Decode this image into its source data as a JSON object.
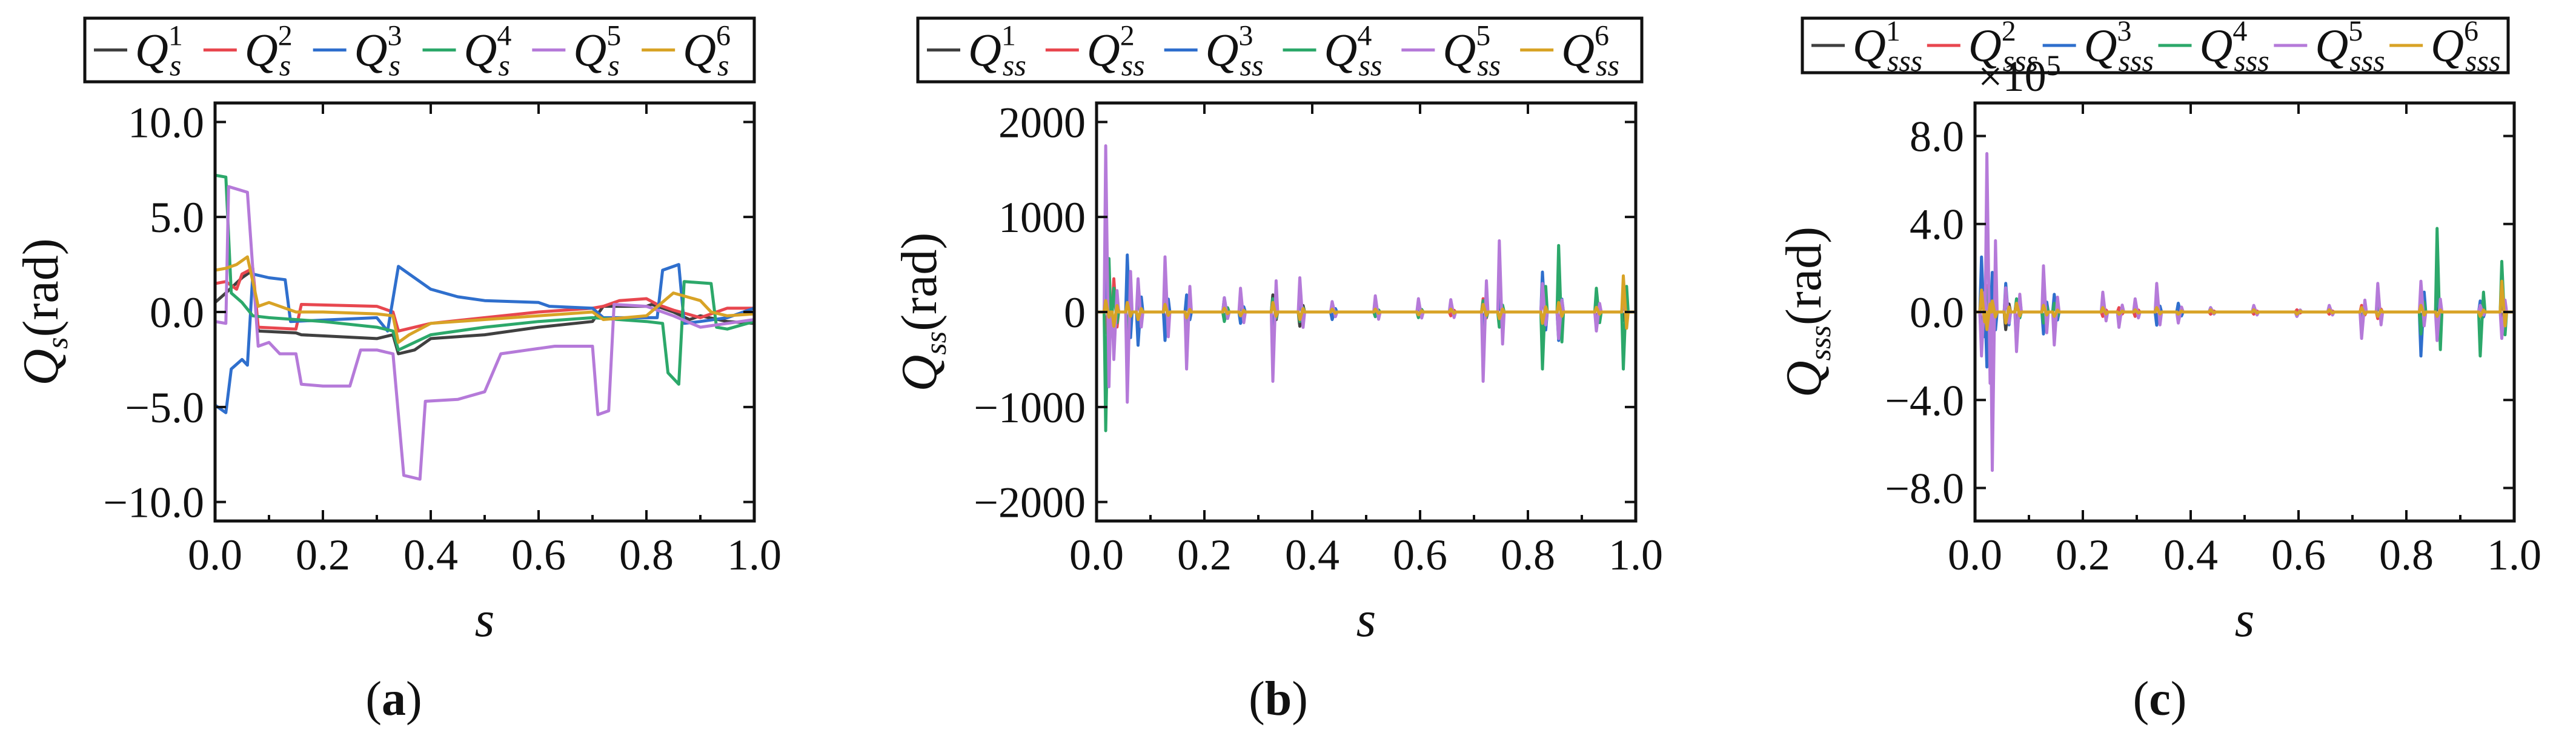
{
  "colors": {
    "series": [
      "#404040",
      "#e8474f",
      "#2f6fcd",
      "#2ca86a",
      "#b57ad9",
      "#d8a326"
    ]
  },
  "chart_data": [
    {
      "panel": "(a)",
      "panel_letter": "a",
      "type": "line",
      "title": "",
      "legend_location": "top-center",
      "legend_base": "Q",
      "legend_sub": "s",
      "legend_sups": [
        "1",
        "2",
        "3",
        "4",
        "5",
        "6"
      ],
      "xlabel": "s",
      "ylabel_main": "Q",
      "ylabel_sub": "s",
      "ylabel_unit": "(rad)",
      "xlim": [
        0,
        1
      ],
      "ylim": [
        -11,
        11
      ],
      "xticks": [
        "0.0",
        "0.2",
        "0.4",
        "0.6",
        "0.8",
        "1.0"
      ],
      "xtick_values": [
        0,
        0.2,
        0.4,
        0.6,
        0.8,
        1.0
      ],
      "yticks": [
        "10.0",
        "5.0",
        "0.0",
        "−5.0",
        "−10.0"
      ],
      "ytick_values": [
        10,
        5,
        0,
        -5,
        -10
      ],
      "exponent_label": "",
      "series": [
        {
          "name": "Q_s^1",
          "points": [
            [
              0,
              0.5
            ],
            [
              0.02,
              1.0
            ],
            [
              0.05,
              1.8
            ],
            [
              0.07,
              2.2
            ],
            [
              0.08,
              -1.0
            ],
            [
              0.15,
              -1.1
            ],
            [
              0.16,
              -1.2
            ],
            [
              0.3,
              -1.4
            ],
            [
              0.33,
              -1.2
            ],
            [
              0.34,
              -2.2
            ],
            [
              0.37,
              -2.0
            ],
            [
              0.38,
              -1.8
            ],
            [
              0.4,
              -1.4
            ],
            [
              0.5,
              -1.2
            ],
            [
              0.6,
              -0.8
            ],
            [
              0.7,
              -0.5
            ],
            [
              0.72,
              0.3
            ],
            [
              0.8,
              0.3
            ],
            [
              0.81,
              0.4
            ],
            [
              0.85,
              0.0
            ],
            [
              0.88,
              -0.4
            ],
            [
              0.9,
              -0.2
            ],
            [
              0.95,
              -0.5
            ],
            [
              1.0,
              -0.6
            ]
          ]
        },
        {
          "name": "Q_s^2",
          "points": [
            [
              0,
              1.5
            ],
            [
              0.02,
              1.6
            ],
            [
              0.04,
              1.2
            ],
            [
              0.05,
              2.0
            ],
            [
              0.07,
              2.3
            ],
            [
              0.08,
              -0.8
            ],
            [
              0.15,
              -0.9
            ],
            [
              0.16,
              0.4
            ],
            [
              0.3,
              0.3
            ],
            [
              0.33,
              0.0
            ],
            [
              0.34,
              -1.0
            ],
            [
              0.4,
              -0.6
            ],
            [
              0.5,
              -0.3
            ],
            [
              0.6,
              0.0
            ],
            [
              0.7,
              0.2
            ],
            [
              0.72,
              0.3
            ],
            [
              0.75,
              0.6
            ],
            [
              0.8,
              0.7
            ],
            [
              0.82,
              0.4
            ],
            [
              0.85,
              0.1
            ],
            [
              0.9,
              -0.3
            ],
            [
              0.95,
              0.2
            ],
            [
              1.0,
              0.2
            ]
          ]
        },
        {
          "name": "Q_s^3",
          "points": [
            [
              0,
              -4.9
            ],
            [
              0.02,
              -5.3
            ],
            [
              0.03,
              -3.0
            ],
            [
              0.05,
              -2.5
            ],
            [
              0.06,
              -2.8
            ],
            [
              0.07,
              2.0
            ],
            [
              0.1,
              1.8
            ],
            [
              0.13,
              1.7
            ],
            [
              0.14,
              -0.5
            ],
            [
              0.3,
              -0.3
            ],
            [
              0.32,
              -1.0
            ],
            [
              0.34,
              2.4
            ],
            [
              0.36,
              2.0
            ],
            [
              0.4,
              1.2
            ],
            [
              0.45,
              0.8
            ],
            [
              0.5,
              0.6
            ],
            [
              0.6,
              0.5
            ],
            [
              0.62,
              0.3
            ],
            [
              0.7,
              0.2
            ],
            [
              0.72,
              -0.3
            ],
            [
              0.82,
              -0.3
            ],
            [
              0.83,
              2.2
            ],
            [
              0.86,
              2.5
            ],
            [
              0.87,
              -0.6
            ],
            [
              0.9,
              -0.5
            ],
            [
              0.95,
              -0.3
            ],
            [
              1.0,
              0.2
            ]
          ]
        },
        {
          "name": "Q_s^4",
          "points": [
            [
              0,
              7.2
            ],
            [
              0.02,
              7.1
            ],
            [
              0.03,
              1.0
            ],
            [
              0.05,
              0.5
            ],
            [
              0.07,
              -0.2
            ],
            [
              0.1,
              -0.3
            ],
            [
              0.2,
              -0.5
            ],
            [
              0.3,
              -0.8
            ],
            [
              0.33,
              -1.0
            ],
            [
              0.34,
              -2.0
            ],
            [
              0.4,
              -1.2
            ],
            [
              0.5,
              -0.8
            ],
            [
              0.6,
              -0.5
            ],
            [
              0.7,
              -0.3
            ],
            [
              0.8,
              -0.5
            ],
            [
              0.83,
              -0.6
            ],
            [
              0.84,
              -3.2
            ],
            [
              0.86,
              -3.8
            ],
            [
              0.87,
              1.6
            ],
            [
              0.92,
              1.5
            ],
            [
              0.93,
              -0.8
            ],
            [
              0.95,
              -0.9
            ],
            [
              1.0,
              -0.5
            ]
          ]
        },
        {
          "name": "Q_s^5",
          "points": [
            [
              0,
              -0.5
            ],
            [
              0.02,
              -0.6
            ],
            [
              0.025,
              6.6
            ],
            [
              0.06,
              6.3
            ],
            [
              0.08,
              -1.8
            ],
            [
              0.1,
              -1.6
            ],
            [
              0.12,
              -2.2
            ],
            [
              0.15,
              -2.2
            ],
            [
              0.16,
              -3.8
            ],
            [
              0.2,
              -3.9
            ],
            [
              0.25,
              -3.9
            ],
            [
              0.27,
              -2.0
            ],
            [
              0.3,
              -2.0
            ],
            [
              0.33,
              -2.2
            ],
            [
              0.35,
              -8.6
            ],
            [
              0.38,
              -8.8
            ],
            [
              0.39,
              -4.7
            ],
            [
              0.45,
              -4.6
            ],
            [
              0.5,
              -4.2
            ],
            [
              0.53,
              -2.2
            ],
            [
              0.58,
              -2.0
            ],
            [
              0.63,
              -1.8
            ],
            [
              0.7,
              -1.8
            ],
            [
              0.71,
              -5.4
            ],
            [
              0.73,
              -5.2
            ],
            [
              0.74,
              0.4
            ],
            [
              0.8,
              0.3
            ],
            [
              0.85,
              -0.2
            ],
            [
              0.9,
              -0.8
            ],
            [
              0.95,
              -0.6
            ],
            [
              1.0,
              -0.4
            ]
          ]
        },
        {
          "name": "Q_s^6",
          "points": [
            [
              0,
              2.2
            ],
            [
              0.02,
              2.3
            ],
            [
              0.04,
              2.5
            ],
            [
              0.06,
              2.9
            ],
            [
              0.08,
              0.3
            ],
            [
              0.1,
              0.5
            ],
            [
              0.15,
              0.0
            ],
            [
              0.2,
              0.0
            ],
            [
              0.3,
              -0.1
            ],
            [
              0.33,
              -0.2
            ],
            [
              0.34,
              -1.6
            ],
            [
              0.36,
              -1.2
            ],
            [
              0.4,
              -0.6
            ],
            [
              0.5,
              -0.4
            ],
            [
              0.6,
              -0.2
            ],
            [
              0.7,
              0.0
            ],
            [
              0.72,
              -0.4
            ],
            [
              0.8,
              -0.2
            ],
            [
              0.85,
              1.0
            ],
            [
              0.9,
              0.6
            ],
            [
              0.92,
              0.0
            ],
            [
              0.95,
              -0.2
            ],
            [
              1.0,
              -0.1
            ]
          ]
        }
      ]
    },
    {
      "panel": "(b)",
      "panel_letter": "b",
      "type": "line",
      "title": "",
      "legend_location": "top-center",
      "legend_base": "Q",
      "legend_sub": "ss",
      "legend_sups": [
        "1",
        "2",
        "3",
        "4",
        "5",
        "6"
      ],
      "xlabel": "s",
      "ylabel_main": "Q",
      "ylabel_sub": "ss",
      "ylabel_unit": "(rad)",
      "xlim": [
        0,
        1
      ],
      "ylim": [
        -2200,
        2200
      ],
      "xticks": [
        "0.0",
        "0.2",
        "0.4",
        "0.6",
        "0.8",
        "1.0"
      ],
      "xtick_values": [
        0,
        0.2,
        0.4,
        0.6,
        0.8,
        1.0
      ],
      "yticks": [
        "2000",
        "1000",
        "0",
        "−1000",
        "−2000"
      ],
      "ytick_values": [
        2000,
        1000,
        0,
        -1000,
        -2000
      ],
      "exponent_label": "",
      "spike_x": [
        0.02,
        0.035,
        0.06,
        0.08,
        0.13,
        0.17,
        0.24,
        0.27,
        0.33,
        0.38,
        0.44,
        0.52,
        0.6,
        0.66,
        0.72,
        0.75,
        0.83,
        0.86,
        0.93,
        0.98
      ],
      "series": [
        {
          "name": "Q_ss^1",
          "spikes": [
            180,
            -300,
            150,
            -200,
            120,
            -80,
            60,
            -50,
            180,
            -150,
            60,
            40,
            -40,
            50,
            -120,
            100,
            -200,
            120,
            60,
            -90
          ]
        },
        {
          "name": "Q_ss^2",
          "spikes": [
            -220,
            350,
            -180,
            150,
            -150,
            100,
            -80,
            70,
            -220,
            160,
            -60,
            -40,
            50,
            -40,
            140,
            -110,
            220,
            -150,
            -70,
            110
          ]
        },
        {
          "name": "Q_ss^3",
          "spikes": [
            420,
            -400,
            600,
            -350,
            -300,
            180,
            150,
            -120,
            -250,
            120,
            -80,
            60,
            70,
            50,
            -180,
            200,
            420,
            -300,
            -150,
            160
          ]
        },
        {
          "name": "Q_ss^4",
          "spikes": [
            -1250,
            250,
            -200,
            180,
            140,
            -120,
            -100,
            90,
            140,
            -100,
            50,
            -50,
            -60,
            40,
            120,
            -160,
            -600,
            700,
            250,
            -600
          ]
        },
        {
          "name": "Q_ss^5",
          "spikes": [
            1750,
            -500,
            -950,
            350,
            580,
            -600,
            150,
            250,
            -730,
            360,
            110,
            170,
            140,
            130,
            -730,
            750,
            300,
            -280,
            -200,
            160
          ]
        },
        {
          "name": "Q_ss^6",
          "spikes": [
            120,
            -150,
            100,
            -80,
            80,
            -60,
            40,
            -40,
            100,
            -80,
            30,
            30,
            -30,
            30,
            80,
            -70,
            -120,
            100,
            50,
            380
          ]
        }
      ]
    },
    {
      "panel": "(c)",
      "panel_letter": "c",
      "type": "line",
      "title": "",
      "legend_location": "top-center",
      "legend_base": "Q",
      "legend_sub": "sss",
      "legend_sups": [
        "1",
        "2",
        "3",
        "4",
        "5",
        "6"
      ],
      "xlabel": "s",
      "ylabel_main": "Q",
      "ylabel_sub": "sss",
      "ylabel_unit": "(rad)",
      "xlim": [
        0,
        1
      ],
      "ylim": [
        -9.5,
        9.5
      ],
      "xticks": [
        "0.0",
        "0.2",
        "0.4",
        "0.6",
        "0.8",
        "1.0"
      ],
      "xtick_values": [
        0,
        0.2,
        0.4,
        0.6,
        0.8,
        1.0
      ],
      "yticks": [
        "8.0",
        "4.0",
        "0.0",
        "−4.0",
        "−8.0"
      ],
      "ytick_values": [
        8,
        4,
        0,
        -4,
        -8
      ],
      "exponent_label": "×10",
      "exponent_power": "5",
      "spike_x": [
        0.015,
        0.025,
        0.035,
        0.06,
        0.08,
        0.13,
        0.15,
        0.24,
        0.27,
        0.3,
        0.34,
        0.38,
        0.44,
        0.52,
        0.6,
        0.66,
        0.72,
        0.75,
        0.83,
        0.86,
        0.94,
        0.98
      ],
      "series": [
        {
          "name": "Q_sss^1",
          "spikes": [
            0.8,
            -1.0,
            0.6,
            -0.8,
            0.5,
            0.4,
            -0.3,
            0.2,
            -0.2,
            0.2,
            0.3,
            -0.2,
            0.1,
            0.1,
            -0.1,
            0.1,
            -0.3,
            0.3,
            -0.4,
            0.3,
            0.2,
            -0.3
          ]
        },
        {
          "name": "Q_sss^2",
          "spikes": [
            -1.0,
            1.2,
            -0.8,
            0.7,
            -0.6,
            -0.5,
            0.4,
            -0.2,
            0.2,
            -0.2,
            -0.3,
            0.2,
            -0.1,
            -0.1,
            0.1,
            -0.1,
            0.3,
            -0.3,
            0.5,
            -0.4,
            -0.2,
            0.4
          ]
        },
        {
          "name": "Q_sss^3",
          "spikes": [
            2.5,
            -2.5,
            1.8,
            1.3,
            -1.5,
            -1.0,
            0.8,
            0.4,
            -0.5,
            0.4,
            -0.6,
            0.4,
            0.2,
            0.2,
            -0.2,
            0.2,
            -0.5,
            0.5,
            -2.0,
            1.2,
            0.5,
            1.2
          ]
        },
        {
          "name": "Q_sss^4",
          "spikes": [
            -1.5,
            1.0,
            -1.2,
            0.8,
            0.6,
            -0.5,
            0.4,
            0.3,
            -0.3,
            0.3,
            0.3,
            -0.2,
            0.1,
            0.1,
            -0.1,
            0.1,
            -0.6,
            0.5,
            -1.0,
            3.8,
            -2.0,
            2.3
          ]
        },
        {
          "name": "Q_sss^5",
          "spikes": [
            -2.0,
            7.2,
            -7.2,
            1.1,
            -1.8,
            2.1,
            -1.5,
            0.9,
            -0.7,
            0.6,
            1.3,
            -0.5,
            0.2,
            0.3,
            -0.2,
            0.3,
            -1.2,
            1.3,
            1.4,
            -1.3,
            0.3,
            -1.2
          ]
        },
        {
          "name": "Q_sss^6",
          "spikes": [
            1.0,
            -0.8,
            0.5,
            -0.5,
            0.4,
            0.3,
            -0.2,
            0.2,
            -0.1,
            0.1,
            0.2,
            -0.1,
            0.1,
            0.1,
            -0.1,
            0.1,
            0.2,
            -0.2,
            0.3,
            -0.2,
            -0.2,
            1.4
          ]
        }
      ]
    }
  ]
}
